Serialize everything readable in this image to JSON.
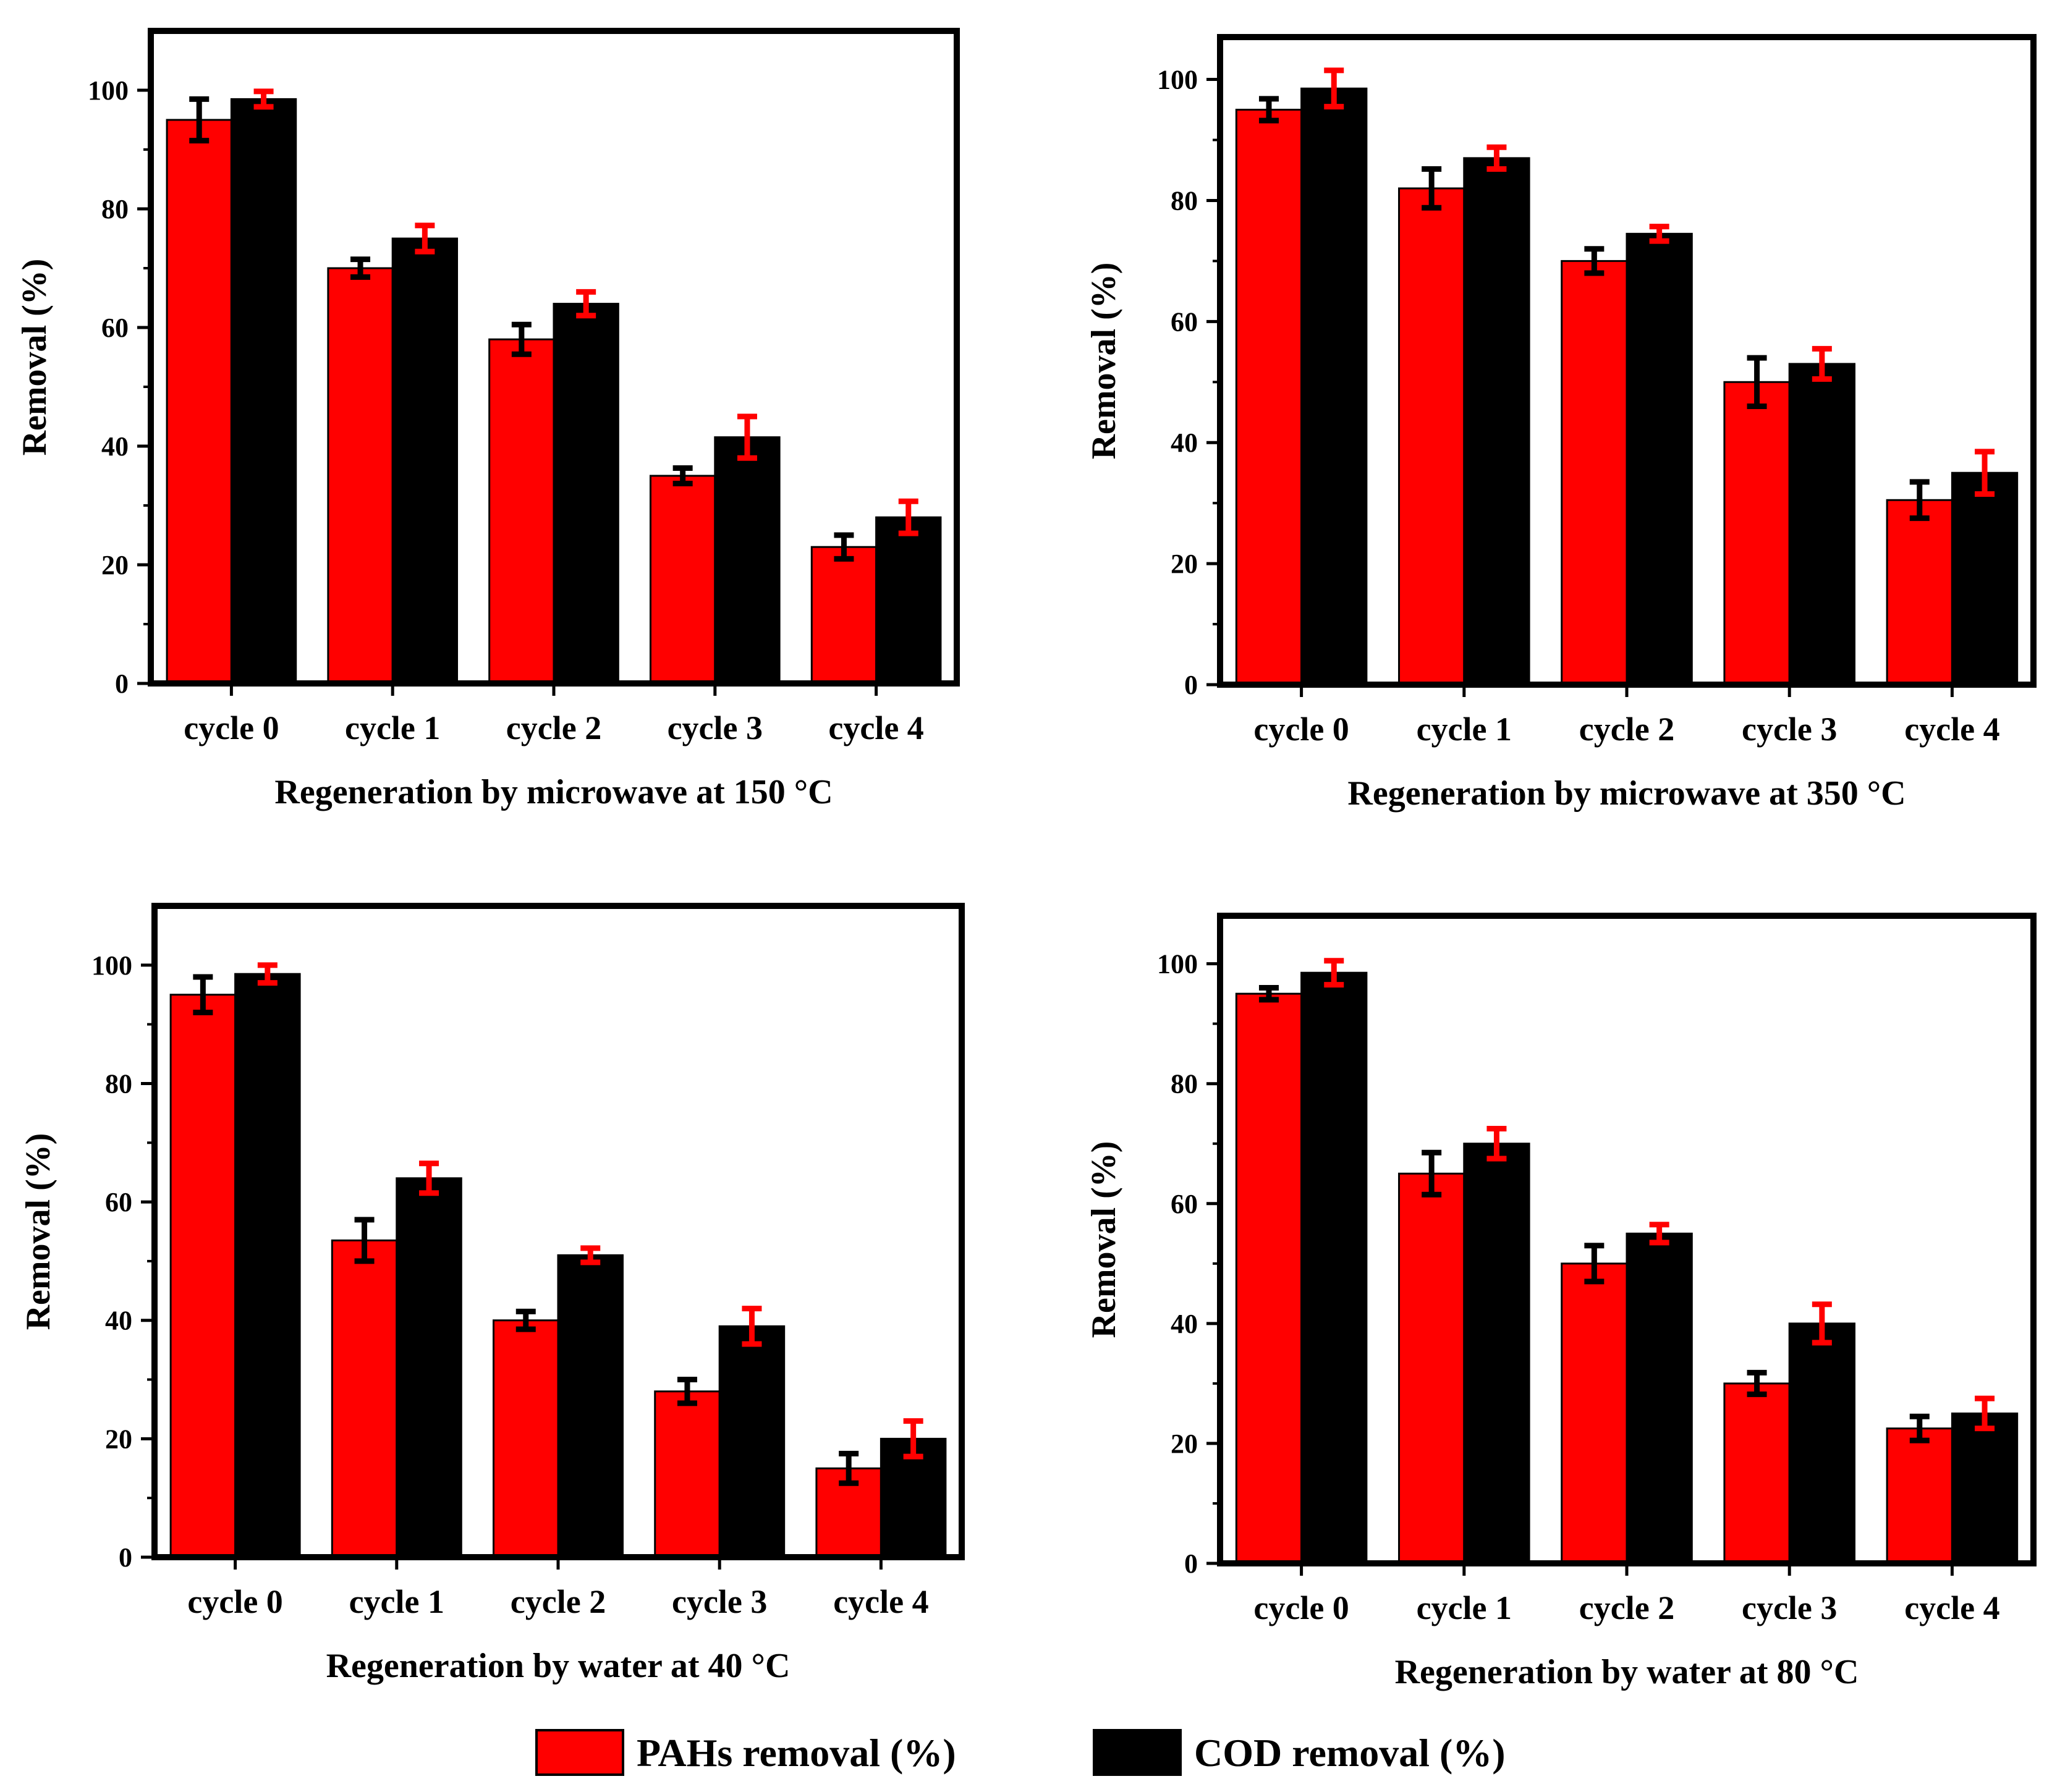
{
  "legend": {
    "pahs_label": "PAHs removal (%)",
    "cod_label": "COD removal (%)"
  },
  "colors": {
    "pahs": "#ff0000",
    "cod": "#000000",
    "pahs_error": "#000000",
    "cod_error": "#ff0000"
  },
  "chart_data": [
    {
      "type": "bar",
      "xlabel": "Regeneration by microwave at 150 °C",
      "ylabel": "Removal (%)",
      "categories": [
        "cycle 0",
        "cycle 1",
        "cycle 2",
        "cycle 3",
        "cycle 4"
      ],
      "ylim": [
        0,
        110
      ],
      "yticks": [
        0,
        20,
        40,
        60,
        80,
        100
      ],
      "series": [
        {
          "name": "PAHs removal (%)",
          "values": [
            95,
            70,
            58,
            35,
            23
          ],
          "errors": [
            3.5,
            1.5,
            2.5,
            1.3,
            2
          ]
        },
        {
          "name": "COD removal (%)",
          "values": [
            98.5,
            75,
            64,
            41.5,
            28
          ],
          "errors": [
            1.3,
            2.2,
            2,
            3.5,
            2.7
          ]
        }
      ]
    },
    {
      "type": "bar",
      "xlabel": "Regeneration by microwave at 350 °C",
      "ylabel": "Removal (%)",
      "categories": [
        "cycle 0",
        "cycle 1",
        "cycle 2",
        "cycle 3",
        "cycle 4"
      ],
      "ylim": [
        0,
        107
      ],
      "yticks": [
        0,
        20,
        40,
        60,
        80,
        100
      ],
      "series": [
        {
          "name": "PAHs removal (%)",
          "values": [
            95,
            82,
            70,
            50,
            30.5
          ],
          "errors": [
            1.8,
            3.2,
            2,
            4,
            3
          ]
        },
        {
          "name": "COD removal (%)",
          "values": [
            98.5,
            87,
            74.5,
            53,
            35
          ],
          "errors": [
            3,
            1.8,
            1.2,
            2.5,
            3.5
          ]
        }
      ]
    },
    {
      "type": "bar",
      "xlabel": "Regeneration by water at 40 °C",
      "ylabel": "Removal (%)",
      "categories": [
        "cycle 0",
        "cycle 1",
        "cycle 2",
        "cycle 3",
        "cycle 4"
      ],
      "ylim": [
        0,
        110
      ],
      "yticks": [
        0,
        20,
        40,
        60,
        80,
        100
      ],
      "series": [
        {
          "name": "PAHs removal (%)",
          "values": [
            95,
            53.5,
            40,
            28,
            15
          ],
          "errors": [
            3,
            3.5,
            1.5,
            2,
            2.5
          ]
        },
        {
          "name": "COD removal (%)",
          "values": [
            98.5,
            64,
            51,
            39,
            20
          ],
          "errors": [
            1.5,
            2.5,
            1.2,
            3,
            3
          ]
        }
      ]
    },
    {
      "type": "bar",
      "xlabel": "Regeneration by water at 80 °C",
      "ylabel": "Removal (%)",
      "categories": [
        "cycle 0",
        "cycle 1",
        "cycle 2",
        "cycle 3",
        "cycle 4"
      ],
      "ylim": [
        0,
        108
      ],
      "yticks": [
        0,
        20,
        40,
        60,
        80,
        100
      ],
      "series": [
        {
          "name": "PAHs removal (%)",
          "values": [
            95,
            65,
            50,
            30,
            22.5
          ],
          "errors": [
            1,
            3.5,
            3,
            1.8,
            2
          ]
        },
        {
          "name": "COD removal (%)",
          "values": [
            98.5,
            70,
            55,
            40,
            25
          ],
          "errors": [
            2,
            2.5,
            1.5,
            3.2,
            2.5
          ]
        }
      ]
    }
  ]
}
